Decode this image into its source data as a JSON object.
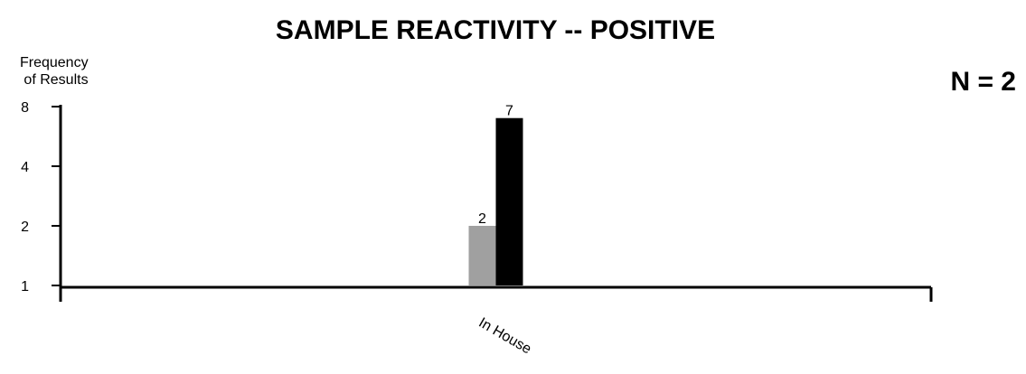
{
  "chart_data": {
    "type": "bar",
    "title": "SAMPLE REACTIVITY -- POSITIVE",
    "annotation": "N = 2",
    "ylabel_lines": [
      "Frequency",
      "of Results"
    ],
    "xlabel": "",
    "y_scale": "log2",
    "ylim": [
      1,
      8
    ],
    "y_ticks": [
      "1",
      "2",
      "4",
      "8"
    ],
    "categories": [
      "In House"
    ],
    "series": [
      {
        "color": "#a0a0a0",
        "values": [
          2
        ],
        "labels": [
          "2"
        ]
      },
      {
        "color": "#000000",
        "values": [
          7
        ],
        "labels": [
          "7"
        ]
      }
    ],
    "grid": false,
    "legend": "none"
  }
}
